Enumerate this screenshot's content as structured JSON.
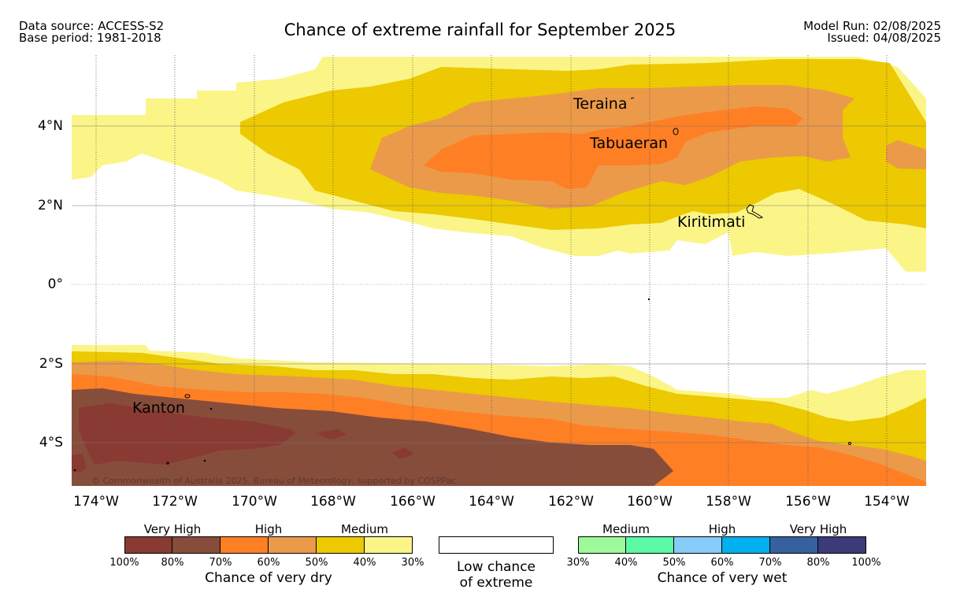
{
  "header": {
    "data_source": "Data source: ACCESS-S2",
    "base_period": "Base period: 1981-2018",
    "title": "Chance of extreme rainfall for September 2025",
    "model_run": "Model Run: 02/08/2025",
    "issued": "Issued: 04/08/2025"
  },
  "map": {
    "copyright": "© Commonwealth of Australia 2025, Bureau of Meteorology, supported by COSPPac",
    "lon_labels": [
      "174°W",
      "172°W",
      "170°W",
      "168°W",
      "166°W",
      "164°W",
      "162°W",
      "160°W",
      "158°W",
      "156°W",
      "154°W"
    ],
    "lat_labels": [
      "4°N",
      "2°N",
      "0°",
      "2°S",
      "4°S"
    ],
    "places": [
      "Teraina",
      "Tabuaeran",
      "Kiritimati",
      "Kanton"
    ]
  },
  "legend": {
    "dry": {
      "categories": [
        "Very High",
        "High",
        "Medium"
      ],
      "ticks": [
        "100%",
        "80%",
        "70%",
        "60%",
        "50%",
        "40%",
        "30%"
      ],
      "colors": [
        "#893a32",
        "#874d3b",
        "#ff7f24",
        "#eb9a4a",
        "#ecc900",
        "#fbf588"
      ],
      "title": "Chance of very dry"
    },
    "low": {
      "line1": "Low chance",
      "line2": "of extreme",
      "color": "#ffffff"
    },
    "wet": {
      "categories": [
        "Medium",
        "High",
        "Very High"
      ],
      "ticks": [
        "30%",
        "40%",
        "50%",
        "60%",
        "70%",
        "80%",
        "100%"
      ],
      "colors": [
        "#9ef99a",
        "#5cf9a6",
        "#87cbf8",
        "#00b0ef",
        "#36609e",
        "#3c3a78"
      ],
      "title": "Chance of very wet"
    }
  }
}
